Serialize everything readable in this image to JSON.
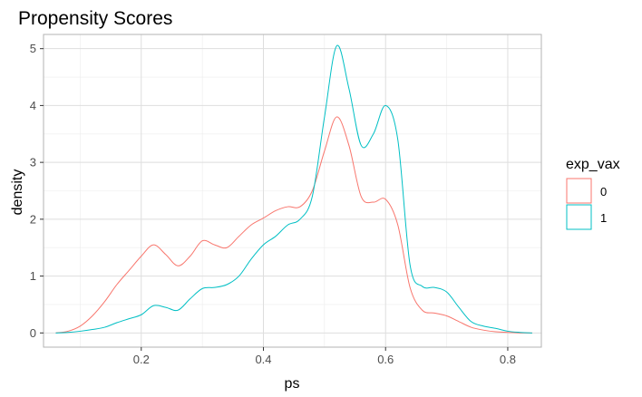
{
  "chart_data": {
    "type": "line",
    "title": "Propensity Scores",
    "xlabel": "ps",
    "ylabel": "density",
    "xlim": [
      0.04,
      0.855
    ],
    "ylim": [
      -0.25,
      5.25
    ],
    "x_ticks": [
      "0.2",
      "0.4",
      "0.6",
      "0.8"
    ],
    "y_ticks": [
      "0",
      "1",
      "2",
      "3",
      "4",
      "5"
    ],
    "grid": true,
    "legend": {
      "title": "exp_vax",
      "position": "right",
      "entries": [
        "0",
        "1"
      ]
    },
    "series": [
      {
        "name": "0",
        "color": "#F8766D",
        "x": [
          0.06,
          0.08,
          0.1,
          0.12,
          0.14,
          0.16,
          0.18,
          0.2,
          0.22,
          0.24,
          0.26,
          0.28,
          0.3,
          0.32,
          0.34,
          0.36,
          0.38,
          0.4,
          0.42,
          0.44,
          0.46,
          0.48,
          0.5,
          0.52,
          0.54,
          0.56,
          0.58,
          0.6,
          0.62,
          0.64,
          0.66,
          0.68,
          0.7,
          0.72,
          0.74,
          0.76,
          0.78,
          0.8,
          0.82,
          0.84
        ],
        "y": [
          0.0,
          0.03,
          0.12,
          0.3,
          0.55,
          0.85,
          1.1,
          1.35,
          1.55,
          1.38,
          1.18,
          1.35,
          1.62,
          1.55,
          1.5,
          1.7,
          1.9,
          2.02,
          2.15,
          2.22,
          2.22,
          2.5,
          3.2,
          3.8,
          3.3,
          2.4,
          2.3,
          2.35,
          1.9,
          0.8,
          0.4,
          0.35,
          0.3,
          0.2,
          0.1,
          0.05,
          0.02,
          0.01,
          0.0,
          0.0
        ]
      },
      {
        "name": "1",
        "color": "#00BFC4",
        "x": [
          0.06,
          0.08,
          0.1,
          0.12,
          0.14,
          0.16,
          0.18,
          0.2,
          0.22,
          0.24,
          0.26,
          0.28,
          0.3,
          0.32,
          0.34,
          0.36,
          0.38,
          0.4,
          0.42,
          0.44,
          0.46,
          0.48,
          0.5,
          0.52,
          0.54,
          0.56,
          0.58,
          0.6,
          0.62,
          0.64,
          0.66,
          0.68,
          0.7,
          0.72,
          0.74,
          0.76,
          0.78,
          0.8,
          0.82,
          0.84
        ],
        "y": [
          0.0,
          0.01,
          0.03,
          0.06,
          0.1,
          0.18,
          0.25,
          0.32,
          0.48,
          0.45,
          0.4,
          0.6,
          0.78,
          0.8,
          0.85,
          1.0,
          1.3,
          1.55,
          1.7,
          1.9,
          2.0,
          2.4,
          3.8,
          5.05,
          4.3,
          3.3,
          3.5,
          4.0,
          3.4,
          1.2,
          0.82,
          0.8,
          0.72,
          0.45,
          0.2,
          0.12,
          0.08,
          0.03,
          0.01,
          0.0
        ]
      }
    ]
  }
}
